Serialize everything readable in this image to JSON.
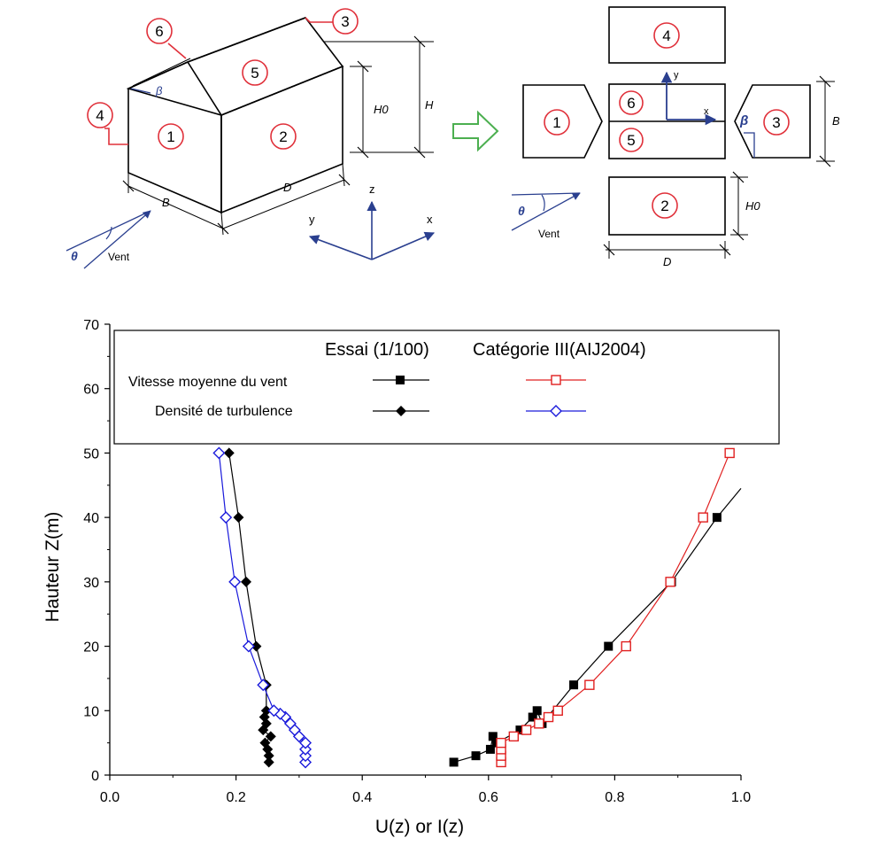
{
  "diagram": {
    "faces_3d": [
      "1",
      "2",
      "3",
      "4",
      "5",
      "6"
    ],
    "faces_plan": [
      "1",
      "2",
      "3",
      "4",
      "5",
      "6"
    ],
    "dims": {
      "h0": "H0",
      "h": "H",
      "b": "B",
      "d": "D"
    },
    "angles": {
      "beta": "β",
      "theta": "θ"
    },
    "axes": {
      "x": "x",
      "y": "y",
      "z": "z"
    },
    "wind": "Vent"
  },
  "colors": {
    "test": "#000000",
    "cat_mean": "#e02020",
    "cat_turb": "#1a1adb",
    "diagram_red": "#e0303a",
    "diagram_blue": "#2a3f8f",
    "arrow_green": "#4caf50"
  },
  "chart_data": {
    "type": "line",
    "xlabel": "U(z) or I(z)",
    "ylabel": "Hauteur Z(m)",
    "xlim": [
      0.0,
      1.0
    ],
    "ylim": [
      0,
      70
    ],
    "xticks": [
      "0.0",
      "0.2",
      "0.4",
      "0.6",
      "0.8",
      "1.0"
    ],
    "yticks": [
      "0",
      "10",
      "20",
      "30",
      "40",
      "50",
      "60",
      "70"
    ],
    "legend": {
      "col_test": "Essai (1/100)",
      "col_cat": "Catégorie III(AIJ2004)",
      "row_mean": "Vitesse moyenne du vent",
      "row_turb": "Densité de turbulence"
    },
    "series": [
      {
        "name": "Vitesse moyenne du vent - Essai (1/100)",
        "marker": "filled-square",
        "color": "#000000",
        "x": [
          0.545,
          0.58,
          0.603,
          0.607,
          0.613,
          0.65,
          0.67,
          0.677,
          0.685,
          0.735,
          0.79,
          0.89,
          0.962
        ],
        "y": [
          2,
          3,
          4,
          6,
          5,
          7,
          9,
          10,
          8,
          14,
          20,
          30,
          40
        ],
        "trend_to": [
          1.0,
          44.5
        ]
      },
      {
        "name": "Vitesse moyenne du vent - Catégorie III(AIJ2004)",
        "marker": "open-square",
        "color": "#e02020",
        "x": [
          0.62,
          0.62,
          0.62,
          0.62,
          0.64,
          0.66,
          0.68,
          0.695,
          0.71,
          0.76,
          0.818,
          0.888,
          0.94,
          0.982
        ],
        "y": [
          2,
          3,
          4,
          5,
          6,
          7,
          8,
          9,
          10,
          14,
          20,
          30,
          40,
          50
        ]
      },
      {
        "name": "Densité de turbulence - Essai (1/100)",
        "marker": "filled-diamond",
        "color": "#000000",
        "x": [
          0.252,
          0.252,
          0.25,
          0.246,
          0.255,
          0.243,
          0.248,
          0.245,
          0.248,
          0.248,
          0.232,
          0.216,
          0.204,
          0.189
        ],
        "y": [
          2,
          3,
          4,
          5,
          6,
          7,
          8,
          9,
          10,
          14,
          20,
          30,
          40,
          50
        ]
      },
      {
        "name": "Densité de turbulence - Catégorie III(AIJ2004)",
        "marker": "open-diamond",
        "color": "#1a1adb",
        "x": [
          0.31,
          0.31,
          0.31,
          0.31,
          0.3,
          0.293,
          0.286,
          0.278,
          0.27,
          0.26,
          0.243,
          0.22,
          0.198,
          0.184,
          0.173
        ],
        "y": [
          2,
          3,
          4,
          5,
          6,
          7,
          8,
          9,
          9.5,
          10,
          14,
          20,
          30,
          40,
          50
        ]
      }
    ]
  }
}
